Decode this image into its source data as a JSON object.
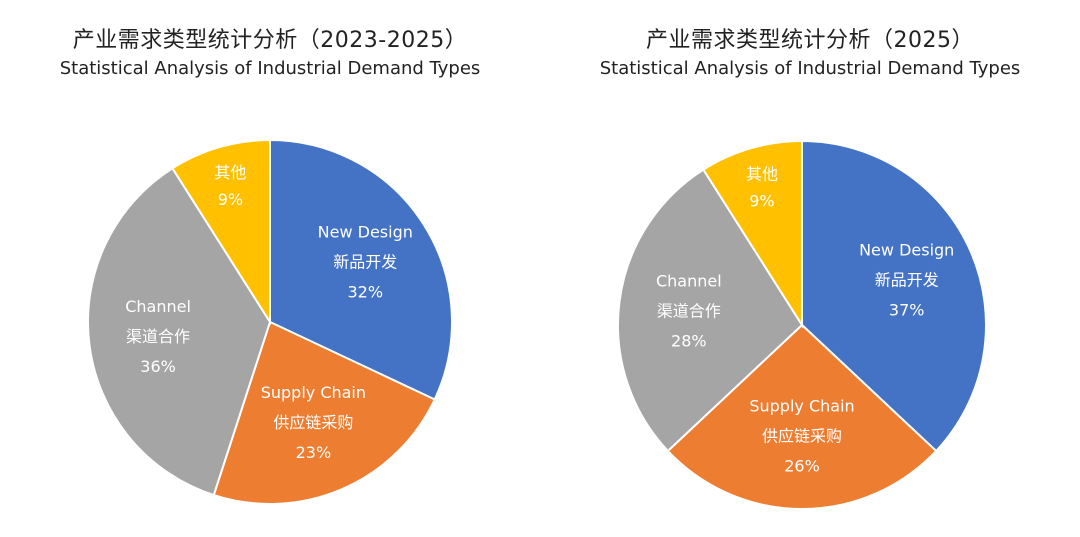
{
  "chart_data": [
    {
      "type": "pie",
      "title": "产业需求类型统计分析（2023-2025）",
      "subtitle": "Statistical Analysis of Industrial Demand Types",
      "slices": [
        {
          "name_en": "New Design",
          "name_cn": "新品开发",
          "value": 32,
          "label": "32%",
          "color": "#4472C4"
        },
        {
          "name_en": "Supply Chain",
          "name_cn": "供应链采购",
          "value": 23,
          "label": "23%",
          "color": "#ED7D31"
        },
        {
          "name_en": "Channel",
          "name_cn": "渠道合作",
          "value": 36,
          "label": "36%",
          "color": "#A5A5A5"
        },
        {
          "name_en": "",
          "name_cn": "其他",
          "value": 9,
          "label": "9%",
          "color": "#FFC000"
        }
      ]
    },
    {
      "type": "pie",
      "title": "产业需求类型统计分析（2025）",
      "subtitle": "Statistical Analysis of Industrial Demand Types",
      "slices": [
        {
          "name_en": "New Design",
          "name_cn": "新品开发",
          "value": 37,
          "label": "37%",
          "color": "#4472C4"
        },
        {
          "name_en": "Supply Chain",
          "name_cn": "供应链采购",
          "value": 26,
          "label": "26%",
          "color": "#ED7D31"
        },
        {
          "name_en": "Channel",
          "name_cn": "渠道合作",
          "value": 28,
          "label": "28%",
          "color": "#A5A5A5"
        },
        {
          "name_en": "",
          "name_cn": "其他",
          "value": 9,
          "label": "9%",
          "color": "#FFC000"
        }
      ]
    }
  ]
}
